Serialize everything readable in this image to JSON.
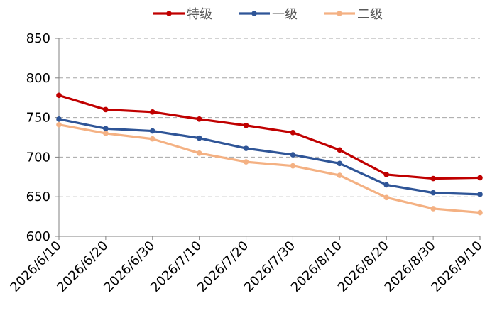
{
  "chart_data": {
    "type": "line",
    "title": "",
    "xlabel": "",
    "ylabel": "",
    "categories": [
      "2026/6/10",
      "2026/6/20",
      "2026/6/30",
      "2026/7/10",
      "2026/7/20",
      "2026/7/30",
      "2026/8/10",
      "2026/8/20",
      "2026/8/30",
      "2026/9/10"
    ],
    "ylim": [
      600,
      850
    ],
    "yticks": [
      600,
      650,
      700,
      750,
      800,
      850
    ],
    "grid": "horizontal-dashed",
    "legend_position": "top",
    "series": [
      {
        "name": "特级",
        "color": "#c00000",
        "values": [
          778,
          760,
          757,
          748,
          740,
          731,
          709,
          678,
          673,
          674
        ]
      },
      {
        "name": "一级",
        "color": "#2f5597",
        "values": [
          748,
          736,
          733,
          724,
          711,
          703,
          692,
          665,
          655,
          653
        ]
      },
      {
        "name": "二级",
        "color": "#f4b183",
        "values": [
          741,
          730,
          723,
          705,
          694,
          689,
          677,
          649,
          635,
          630
        ]
      }
    ]
  }
}
